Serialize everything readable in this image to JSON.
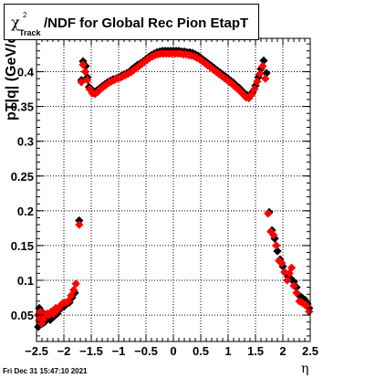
{
  "title": {
    "symbol": "χ",
    "superscript": "2",
    "subscript": "Track",
    "text": "/NDF for Global Rec Pion EtapT"
  },
  "timestamp": "Fri Dec 31 15:47:10 2021",
  "colors": {
    "series_black": "#000000",
    "series_red": "#ff0000",
    "axis": "#000000"
  },
  "chart_data": {
    "type": "scatter",
    "title": "χ²Track/NDF for Global Rec Pion EtapT",
    "xlabel": "η",
    "ylabel": "pT|q| (GeV/c",
    "xlim": [
      -2.5,
      2.5
    ],
    "ylim": [
      0.012,
      0.448
    ],
    "grid": true,
    "x_ticks": [
      "−2.5",
      "−2",
      "−1.5",
      "−1",
      "−0.5",
      "0",
      "0.5",
      "1",
      "1.5",
      "2",
      "2.5"
    ],
    "y_ticks": [
      "0.05",
      "0.1",
      "0.15",
      "0.2",
      "0.25",
      "0.3",
      "0.35",
      "0.4"
    ],
    "series": [
      {
        "marker": "diamond",
        "color": "#000000",
        "points": [
          [
            -2.47,
            0.033
          ],
          [
            -2.45,
            0.06
          ],
          [
            -2.43,
            0.042
          ],
          [
            -2.41,
            0.055
          ],
          [
            -2.39,
            0.038
          ],
          [
            -2.37,
            0.05
          ],
          [
            -2.35,
            0.04
          ],
          [
            -2.32,
            0.045
          ],
          [
            -2.28,
            0.047
          ],
          [
            -2.25,
            0.043
          ],
          [
            -2.22,
            0.05
          ],
          [
            -2.18,
            0.048
          ],
          [
            -2.15,
            0.055
          ],
          [
            -2.12,
            0.052
          ],
          [
            -2.08,
            0.058
          ],
          [
            -2.05,
            0.06
          ],
          [
            -2.0,
            0.062
          ],
          [
            -1.95,
            0.066
          ],
          [
            -1.9,
            0.068
          ],
          [
            -1.85,
            0.075
          ],
          [
            -1.8,
            0.082
          ],
          [
            -1.72,
            0.186
          ],
          [
            -1.68,
            0.388
          ],
          [
            -1.65,
            0.415
          ],
          [
            -1.6,
            0.408
          ],
          [
            -1.57,
            0.392
          ],
          [
            -1.54,
            0.378
          ],
          [
            -1.5,
            0.375
          ],
          [
            -1.45,
            0.371
          ],
          [
            -1.4,
            0.373
          ],
          [
            -1.35,
            0.376
          ],
          [
            -1.3,
            0.379
          ],
          [
            -1.25,
            0.382
          ],
          [
            -1.2,
            0.385
          ],
          [
            -1.15,
            0.387
          ],
          [
            -1.1,
            0.389
          ],
          [
            -1.05,
            0.39
          ],
          [
            -1.0,
            0.392
          ],
          [
            -0.95,
            0.394
          ],
          [
            -0.9,
            0.396
          ],
          [
            -0.85,
            0.398
          ],
          [
            -0.8,
            0.4
          ],
          [
            -0.75,
            0.404
          ],
          [
            -0.7,
            0.407
          ],
          [
            -0.65,
            0.41
          ],
          [
            -0.6,
            0.412
          ],
          [
            -0.55,
            0.415
          ],
          [
            -0.5,
            0.418
          ],
          [
            -0.45,
            0.421
          ],
          [
            -0.4,
            0.424
          ],
          [
            -0.35,
            0.426
          ],
          [
            -0.3,
            0.428
          ],
          [
            -0.25,
            0.429
          ],
          [
            -0.2,
            0.43
          ],
          [
            -0.15,
            0.43
          ],
          [
            -0.1,
            0.43
          ],
          [
            -0.05,
            0.43
          ],
          [
            0.0,
            0.43
          ],
          [
            0.05,
            0.43
          ],
          [
            0.1,
            0.43
          ],
          [
            0.15,
            0.429
          ],
          [
            0.2,
            0.429
          ],
          [
            0.25,
            0.428
          ],
          [
            0.3,
            0.428
          ],
          [
            0.35,
            0.427
          ],
          [
            0.4,
            0.425
          ],
          [
            0.45,
            0.423
          ],
          [
            0.5,
            0.42
          ],
          [
            0.55,
            0.417
          ],
          [
            0.6,
            0.414
          ],
          [
            0.65,
            0.411
          ],
          [
            0.7,
            0.408
          ],
          [
            0.75,
            0.405
          ],
          [
            0.8,
            0.402
          ],
          [
            0.85,
            0.399
          ],
          [
            0.9,
            0.396
          ],
          [
            0.95,
            0.393
          ],
          [
            1.0,
            0.39
          ],
          [
            1.05,
            0.387
          ],
          [
            1.1,
            0.384
          ],
          [
            1.15,
            0.38
          ],
          [
            1.2,
            0.377
          ],
          [
            1.25,
            0.373
          ],
          [
            1.3,
            0.369
          ],
          [
            1.35,
            0.366
          ],
          [
            1.4,
            0.366
          ],
          [
            1.45,
            0.371
          ],
          [
            1.5,
            0.38
          ],
          [
            1.55,
            0.392
          ],
          [
            1.6,
            0.404
          ],
          [
            1.65,
            0.416
          ],
          [
            1.7,
            0.398
          ],
          [
            1.75,
            0.198
          ],
          [
            1.8,
            0.172
          ],
          [
            1.85,
            0.16
          ],
          [
            1.9,
            0.142
          ],
          [
            1.95,
            0.13
          ],
          [
            2.0,
            0.12
          ],
          [
            2.05,
            0.11
          ],
          [
            2.1,
            0.105
          ],
          [
            2.15,
            0.102
          ],
          [
            2.2,
            0.098
          ],
          [
            2.25,
            0.09
          ],
          [
            2.3,
            0.078
          ],
          [
            2.35,
            0.075
          ],
          [
            2.4,
            0.072
          ],
          [
            2.45,
            0.066
          ],
          [
            2.48,
            0.06
          ]
        ]
      },
      {
        "marker": "diamond",
        "color": "#ff0000",
        "points": [
          [
            -2.47,
            0.05
          ],
          [
            -2.45,
            0.042
          ],
          [
            -2.43,
            0.055
          ],
          [
            -2.41,
            0.038
          ],
          [
            -2.38,
            0.043
          ],
          [
            -2.35,
            0.048
          ],
          [
            -2.31,
            0.052
          ],
          [
            -2.27,
            0.05
          ],
          [
            -2.23,
            0.055
          ],
          [
            -2.19,
            0.052
          ],
          [
            -2.15,
            0.06
          ],
          [
            -2.11,
            0.058
          ],
          [
            -2.07,
            0.063
          ],
          [
            -2.02,
            0.067
          ],
          [
            -1.97,
            0.068
          ],
          [
            -1.92,
            0.07
          ],
          [
            -1.87,
            0.078
          ],
          [
            -1.82,
            0.086
          ],
          [
            -1.78,
            0.095
          ],
          [
            -1.72,
            0.18
          ],
          [
            -1.68,
            0.385
          ],
          [
            -1.65,
            0.41
          ],
          [
            -1.61,
            0.4
          ],
          [
            -1.57,
            0.388
          ],
          [
            -1.53,
            0.375
          ],
          [
            -1.48,
            0.369
          ],
          [
            -1.43,
            0.368
          ],
          [
            -1.38,
            0.371
          ],
          [
            -1.33,
            0.375
          ],
          [
            -1.28,
            0.378
          ],
          [
            -1.23,
            0.381
          ],
          [
            -1.18,
            0.384
          ],
          [
            -1.13,
            0.386
          ],
          [
            -1.08,
            0.388
          ],
          [
            -1.03,
            0.39
          ],
          [
            -0.98,
            0.391
          ],
          [
            -0.93,
            0.393
          ],
          [
            -0.88,
            0.395
          ],
          [
            -0.83,
            0.397
          ],
          [
            -0.78,
            0.399
          ],
          [
            -0.73,
            0.402
          ],
          [
            -0.68,
            0.405
          ],
          [
            -0.63,
            0.408
          ],
          [
            -0.58,
            0.411
          ],
          [
            -0.53,
            0.414
          ],
          [
            -0.48,
            0.417
          ],
          [
            -0.43,
            0.42
          ],
          [
            -0.38,
            0.422
          ],
          [
            -0.33,
            0.424
          ],
          [
            -0.28,
            0.425
          ],
          [
            -0.23,
            0.426
          ],
          [
            -0.18,
            0.426
          ],
          [
            -0.13,
            0.426
          ],
          [
            -0.08,
            0.426
          ],
          [
            -0.03,
            0.426
          ],
          [
            0.03,
            0.426
          ],
          [
            0.08,
            0.426
          ],
          [
            0.13,
            0.426
          ],
          [
            0.18,
            0.425
          ],
          [
            0.23,
            0.425
          ],
          [
            0.28,
            0.424
          ],
          [
            0.33,
            0.423
          ],
          [
            0.38,
            0.422
          ],
          [
            0.43,
            0.42
          ],
          [
            0.48,
            0.418
          ],
          [
            0.53,
            0.415
          ],
          [
            0.58,
            0.412
          ],
          [
            0.63,
            0.409
          ],
          [
            0.68,
            0.406
          ],
          [
            0.73,
            0.403
          ],
          [
            0.78,
            0.4
          ],
          [
            0.83,
            0.397
          ],
          [
            0.88,
            0.394
          ],
          [
            0.93,
            0.391
          ],
          [
            0.98,
            0.388
          ],
          [
            1.03,
            0.385
          ],
          [
            1.08,
            0.382
          ],
          [
            1.13,
            0.378
          ],
          [
            1.18,
            0.375
          ],
          [
            1.23,
            0.371
          ],
          [
            1.28,
            0.367
          ],
          [
            1.33,
            0.363
          ],
          [
            1.38,
            0.362
          ],
          [
            1.43,
            0.367
          ],
          [
            1.48,
            0.375
          ],
          [
            1.53,
            0.386
          ],
          [
            1.58,
            0.397
          ],
          [
            1.63,
            0.408
          ],
          [
            1.68,
            0.39
          ],
          [
            1.73,
            0.196
          ],
          [
            1.78,
            0.17
          ],
          [
            1.83,
            0.165
          ],
          [
            1.88,
            0.15
          ],
          [
            1.93,
            0.128
          ],
          [
            1.98,
            0.125
          ],
          [
            2.03,
            0.112
          ],
          [
            2.08,
            0.1
          ],
          [
            2.12,
            0.11
          ],
          [
            2.16,
            0.118
          ],
          [
            2.2,
            0.092
          ],
          [
            2.25,
            0.082
          ],
          [
            2.3,
            0.07
          ],
          [
            2.35,
            0.068
          ],
          [
            2.4,
            0.065
          ],
          [
            2.45,
            0.062
          ],
          [
            2.48,
            0.055
          ]
        ]
      }
    ]
  }
}
